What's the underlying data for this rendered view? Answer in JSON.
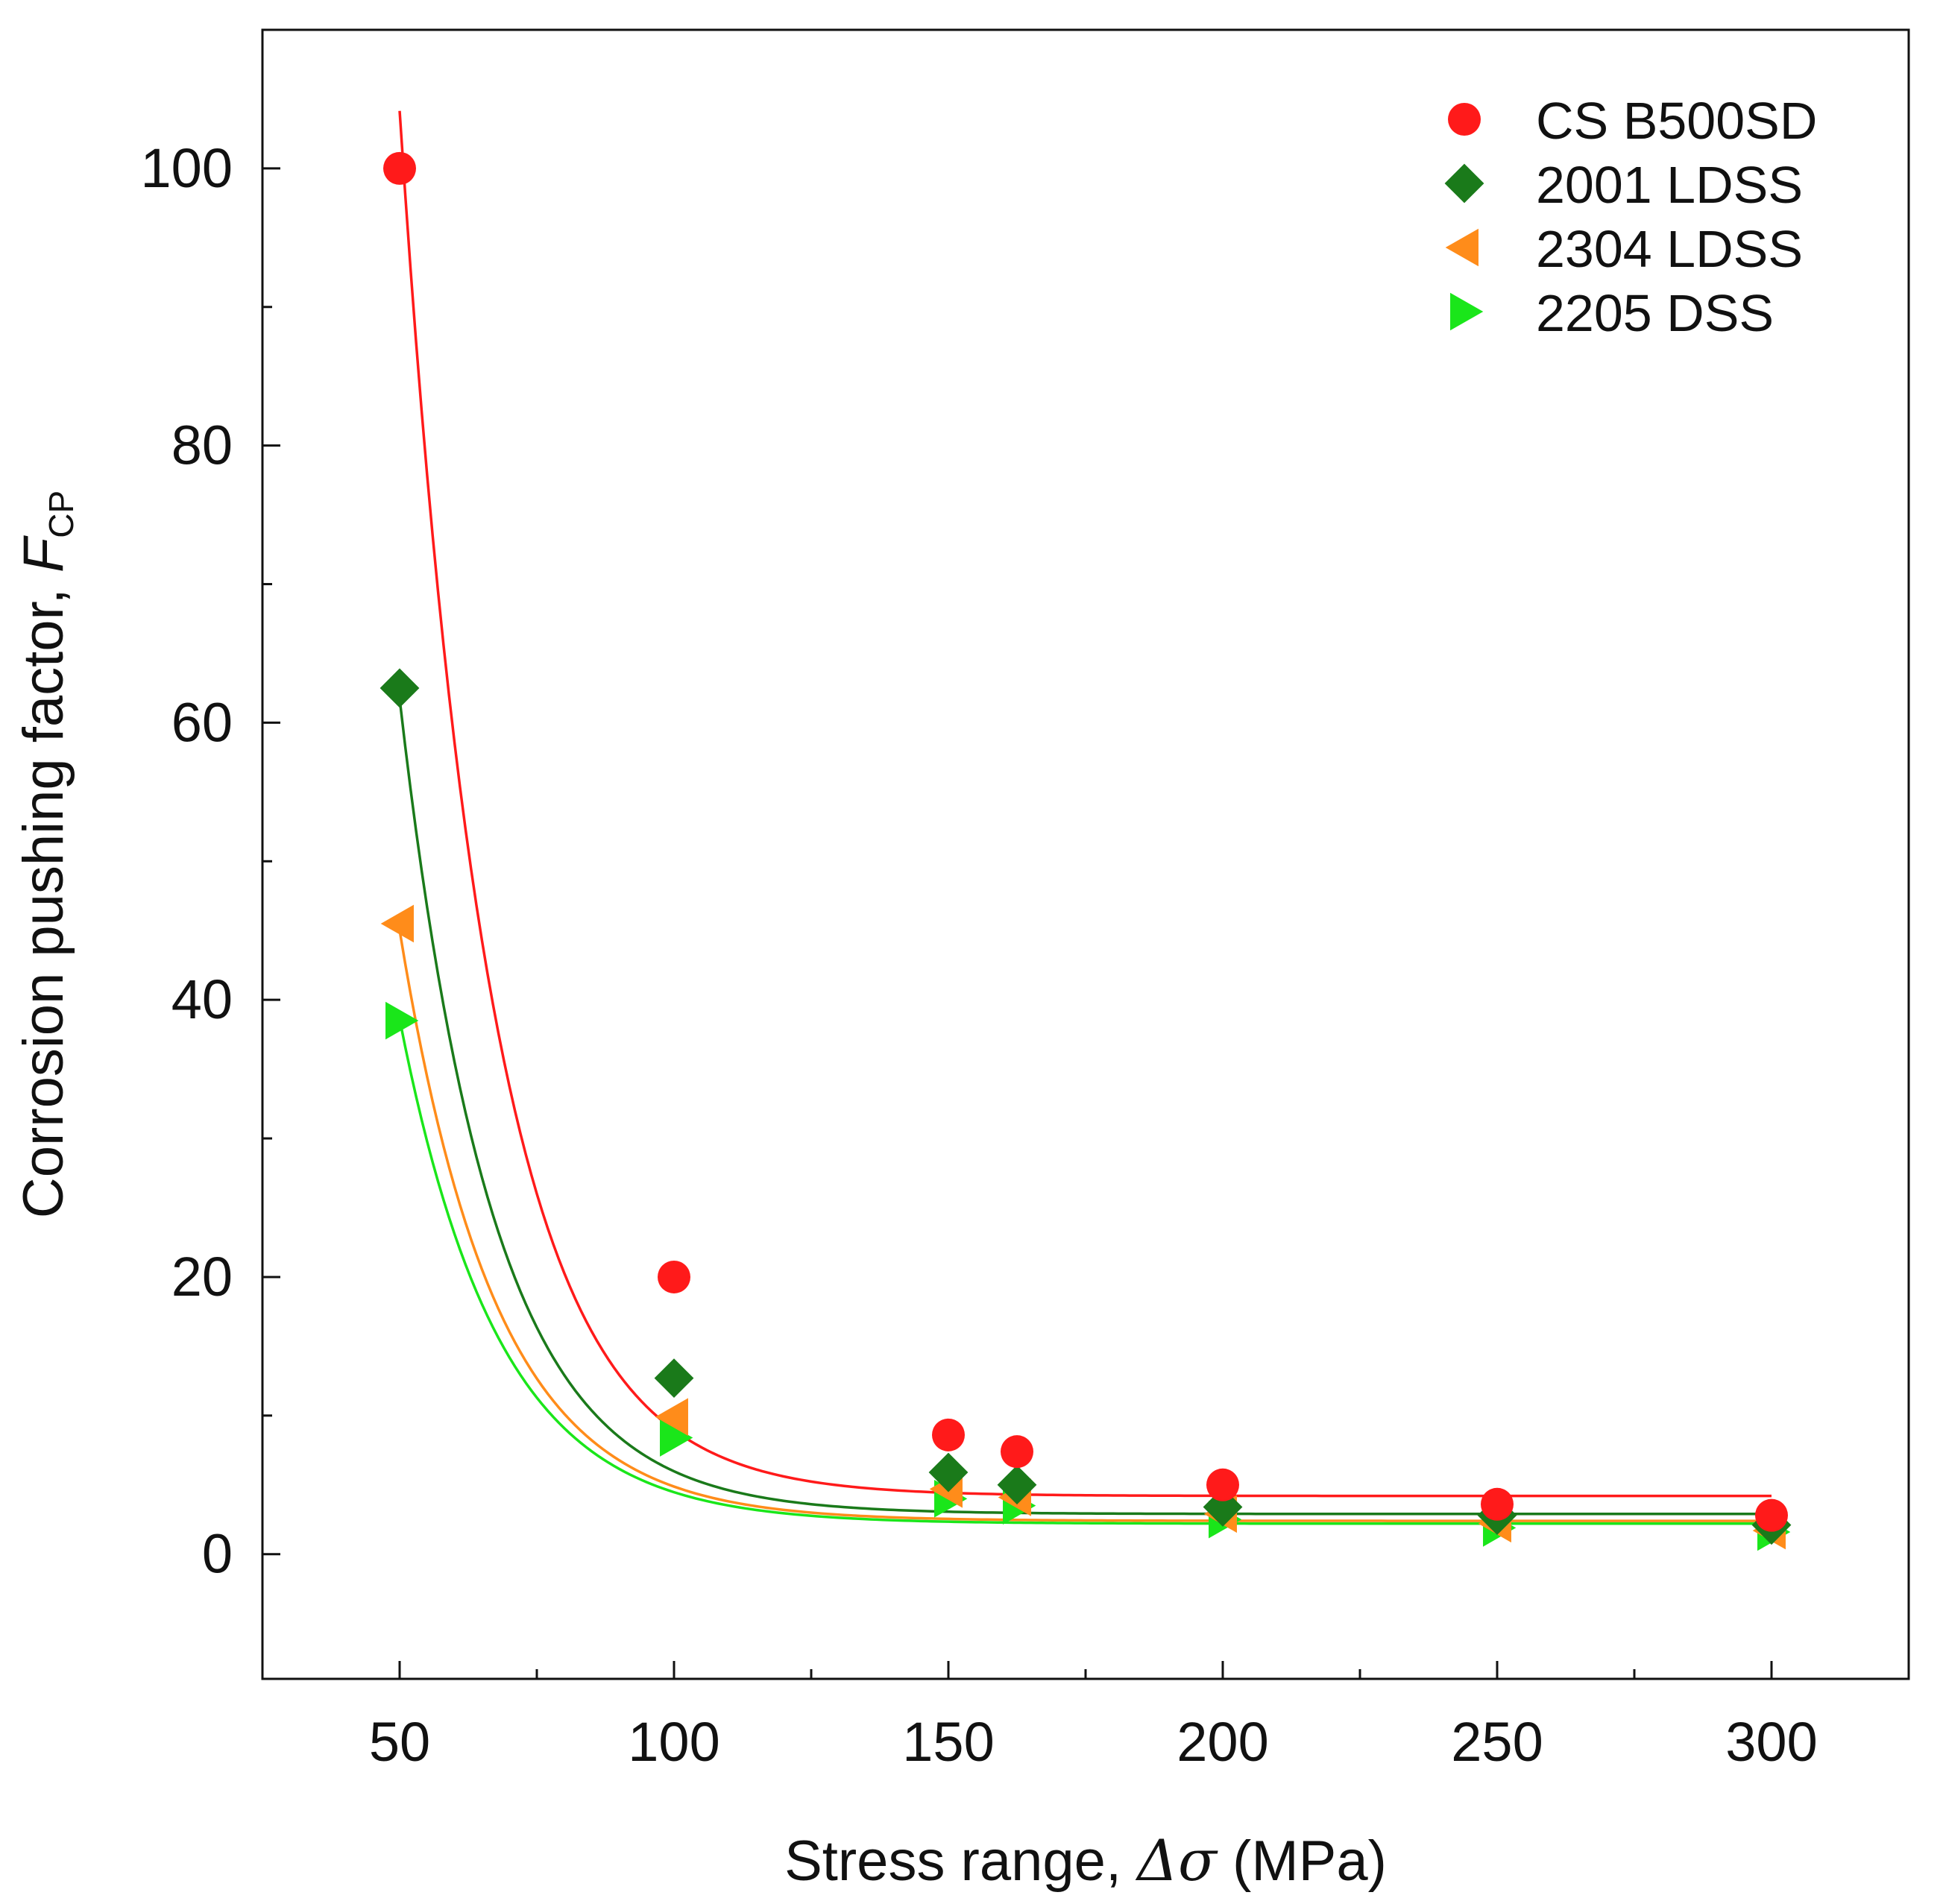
{
  "chart_data": {
    "type": "scatter",
    "title": "",
    "xlabel_prefix": "Stress range, ",
    "xlabel_symbol": "Δσ",
    "xlabel_suffix": " (MPa)",
    "ylabel_prefix": "Corrosion pushing factor, ",
    "ylabel_symbol": "F",
    "ylabel_subscript": "CP",
    "xlim": [
      25,
      325
    ],
    "ylim": [
      -9,
      110
    ],
    "x_ticks": [
      50,
      100,
      150,
      200,
      250,
      300
    ],
    "x_tick_labels": [
      "50",
      "100",
      "150",
      "200",
      "250",
      "300"
    ],
    "x_minor_ticks": [
      75,
      125,
      175,
      225,
      275
    ],
    "y_ticks": [
      0,
      20,
      40,
      60,
      80,
      100
    ],
    "y_tick_labels": [
      "0",
      "20",
      "40",
      "60",
      "80",
      "100"
    ],
    "y_minor_ticks": [
      10,
      30,
      50,
      70,
      90
    ],
    "legend_position": "top-right",
    "series": [
      {
        "name": "CS B500SD",
        "marker": "circle",
        "color": "#ff1a1a",
        "x": [
          50,
          100,
          150,
          162.5,
          200,
          250,
          300
        ],
        "values": [
          100,
          20,
          8.6,
          7.4,
          5.0,
          3.6,
          2.8
        ],
        "fit": {
          "A": 2100,
          "k": 0.0609,
          "C": 4.2
        }
      },
      {
        "name": "2001 LDSS",
        "marker": "diamond",
        "color": "#1a7a1a",
        "x": [
          50,
          100,
          150,
          162.5,
          200,
          250,
          300
        ],
        "values": [
          62.5,
          12.7,
          5.9,
          5.0,
          3.4,
          2.8,
          2.1
        ],
        "fit": {
          "A": 1124,
          "k": 0.059,
          "C": 2.9
        }
      },
      {
        "name": "2304 LDSS",
        "marker": "triangle-left",
        "color": "#ff8c1a",
        "x": [
          50,
          100,
          150,
          162.5,
          200,
          250,
          300
        ],
        "values": [
          45.5,
          9.9,
          4.7,
          4.1,
          2.9,
          2.2,
          1.7
        ],
        "fit": {
          "A": 733,
          "k": 0.0569,
          "C": 2.4
        }
      },
      {
        "name": "2205 DSS",
        "marker": "triangle-right",
        "color": "#1ae61a",
        "x": [
          50,
          100,
          150,
          162.5,
          200,
          250,
          300
        ],
        "values": [
          38.5,
          8.4,
          4.0,
          3.5,
          2.5,
          1.9,
          1.6
        ],
        "fit": {
          "A": 584,
          "k": 0.0555,
          "C": 2.2
        }
      }
    ]
  }
}
